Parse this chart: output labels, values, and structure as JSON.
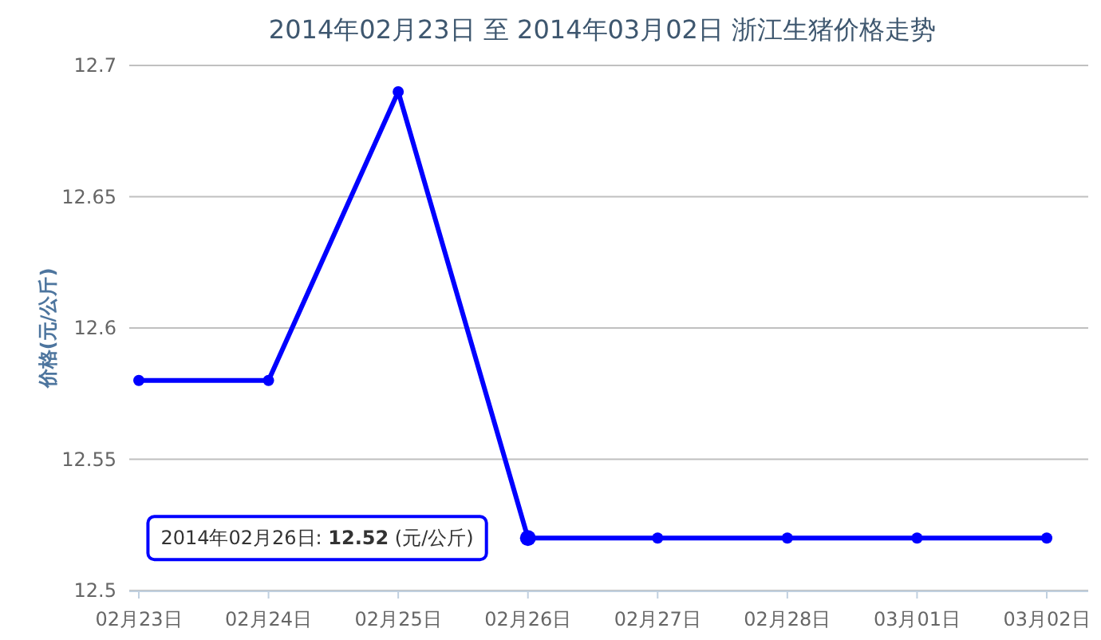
{
  "chart_data": {
    "type": "line",
    "title": "2014年02月23日 至 2014年03月02日 浙江生猪价格走势",
    "ylabel": "价格(元/公斤)",
    "categories": [
      "02月23日",
      "02月24日",
      "02月25日",
      "02月26日",
      "02月27日",
      "02月28日",
      "03月01日",
      "03月02日"
    ],
    "series": [
      {
        "color": "#0000ff",
        "values": [
          12.58,
          12.58,
          12.69,
          12.52,
          12.52,
          12.52,
          12.52,
          12.52
        ]
      }
    ],
    "ylim": [
      12.5,
      12.7
    ],
    "yticks": [
      12.5,
      12.55,
      12.6,
      12.65,
      12.7
    ],
    "grid": "y",
    "marker": "circle",
    "line_style": "solid",
    "annotations": [
      {
        "text": "2014年02月26日: 12.52 (元/公斤)",
        "x": "02月26日",
        "y": 12.52
      }
    ]
  }
}
